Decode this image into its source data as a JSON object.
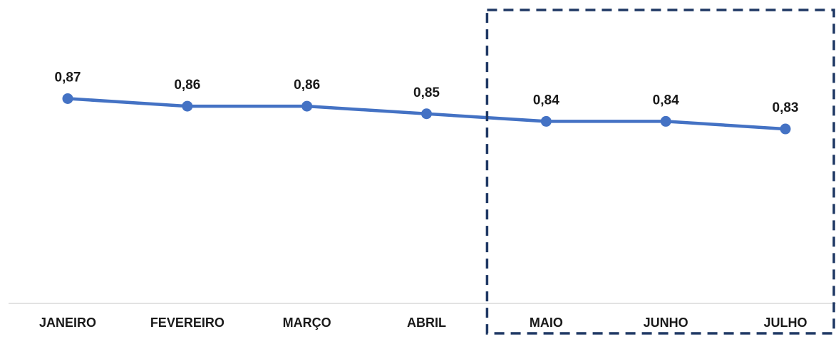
{
  "chart_data": {
    "type": "line",
    "categories": [
      "JANEIRO",
      "FEVEREIRO",
      "MARÇO",
      "ABRIL",
      "MAIO",
      "JUNHO",
      "JULHO"
    ],
    "series": [
      {
        "values": [
          0.87,
          0.86,
          0.86,
          0.85,
          0.84,
          0.84,
          0.83
        ],
        "labels": [
          "0,87",
          "0,86",
          "0,86",
          "0,85",
          "0,84",
          "0,84",
          "0,83"
        ]
      }
    ],
    "title": "",
    "xlabel": "",
    "ylabel": "",
    "ylim": [
      0.6,
      1.0
    ],
    "grid": false,
    "legend": "none",
    "line_color": "#4472C4",
    "axis_color": "#D9D9D9",
    "highlight": {
      "style": "dashed-box",
      "color": "#1F3864",
      "categories": [
        "MAIO",
        "JUNHO",
        "JULHO"
      ]
    }
  }
}
